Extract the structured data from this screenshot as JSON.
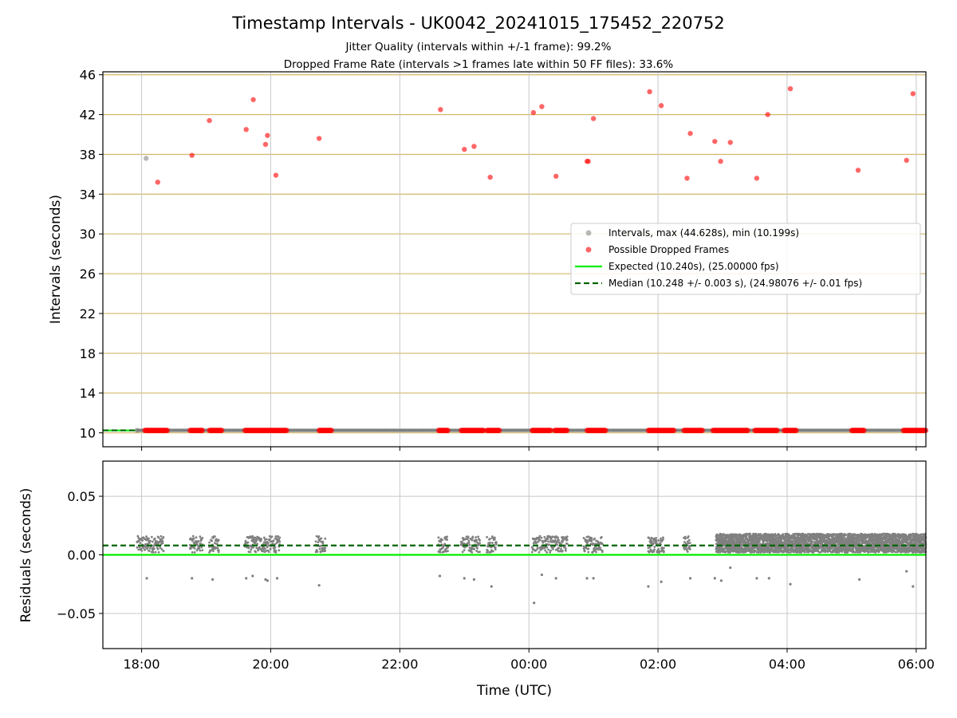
{
  "chart_data": [
    {
      "type": "scatter",
      "title": "Timestamp Intervals - UK0042_20241015_175452_220752",
      "subtitles": [
        "Jitter Quality (intervals within +/-1 frame): 99.2%",
        "Dropped Frame Rate (intervals >1 frames late within 50 FF files): 33.6%"
      ],
      "ylabel": "Intervals (seconds)",
      "xlim_hours": [
        17.4,
        30.15
      ],
      "ylim": [
        8.6,
        46.3
      ],
      "yticks": [
        10,
        14,
        18,
        22,
        26,
        30,
        34,
        38,
        42,
        46
      ],
      "ytick_labels": [
        "10",
        "14",
        "18",
        "22",
        "26",
        "30",
        "34",
        "38",
        "42",
        "46"
      ],
      "xticks_hours": [
        18,
        20,
        22,
        24,
        26,
        28,
        30
      ],
      "grid": true,
      "legend_position": "center-right",
      "colors": {
        "intervals": "#808080",
        "dropped": "#ff0000",
        "expected": "#00ee00",
        "median": "#006400",
        "h_grid": "#d4b86a",
        "v_grid": "#c8c8c8"
      },
      "series": [
        {
          "name": "Intervals, max (44.628s), min (10.199s)",
          "points": [
            [
              17.93,
              10.25
            ],
            [
              18.07,
              37.6
            ]
          ]
        },
        {
          "name": "Possible Dropped Frames",
          "points": [
            [
              18.25,
              35.2
            ],
            [
              18.78,
              37.9
            ],
            [
              19.05,
              41.4
            ],
            [
              19.62,
              40.5
            ],
            [
              19.73,
              43.5
            ],
            [
              19.92,
              39.0
            ],
            [
              19.95,
              39.9
            ],
            [
              20.08,
              35.9
            ],
            [
              20.75,
              39.6
            ],
            [
              22.63,
              42.5
            ],
            [
              23.0,
              38.5
            ],
            [
              23.15,
              38.8
            ],
            [
              23.4,
              35.7
            ],
            [
              24.07,
              42.2
            ],
            [
              24.2,
              42.8
            ],
            [
              24.42,
              35.8
            ],
            [
              24.9,
              37.3
            ],
            [
              24.92,
              37.3
            ],
            [
              25.0,
              41.6
            ],
            [
              25.87,
              44.3
            ],
            [
              26.05,
              42.9
            ],
            [
              26.45,
              35.6
            ],
            [
              26.5,
              40.1
            ],
            [
              26.88,
              39.3
            ],
            [
              26.97,
              37.3
            ],
            [
              27.12,
              39.2
            ],
            [
              27.53,
              35.6
            ],
            [
              27.7,
              42.0
            ],
            [
              28.05,
              44.6
            ],
            [
              29.1,
              36.4
            ],
            [
              29.85,
              37.4
            ],
            [
              29.95,
              44.1
            ]
          ],
          "clusters_near_10": [
            [
              18.05,
              18.4
            ],
            [
              18.75,
              18.95
            ],
            [
              19.05,
              19.25
            ],
            [
              19.6,
              20.25
            ],
            [
              20.75,
              20.95
            ],
            [
              22.6,
              22.75
            ],
            [
              22.95,
              23.3
            ],
            [
              23.35,
              23.55
            ],
            [
              24.05,
              24.35
            ],
            [
              24.4,
              24.6
            ],
            [
              24.9,
              25.2
            ],
            [
              25.85,
              26.25
            ],
            [
              26.4,
              26.7
            ],
            [
              26.85,
              27.4
            ],
            [
              27.5,
              27.85
            ],
            [
              27.95,
              28.15
            ],
            [
              29.0,
              29.2
            ],
            [
              29.8,
              30.15
            ]
          ]
        }
      ],
      "lines": [
        {
          "name": "Expected (10.240s), (25.00000 fps)",
          "y": 10.24,
          "style": "solid"
        },
        {
          "name": "Median (10.248 +/- 0.003 s), (24.98076 +/- 0.01 fps)",
          "y": 10.248,
          "style": "dashed"
        }
      ]
    },
    {
      "type": "scatter",
      "xlabel": "Time (UTC)",
      "ylabel": "Residuals (seconds)",
      "xlim_hours": [
        17.4,
        30.15
      ],
      "ylim": [
        -0.08,
        0.08
      ],
      "yticks": [
        -0.05,
        0.0,
        0.05
      ],
      "ytick_labels": [
        "−0.05",
        "0.00",
        "0.05"
      ],
      "xticks_hours": [
        18,
        20,
        22,
        24,
        26,
        28,
        30
      ],
      "xtick_labels": [
        "18:00",
        "20:00",
        "22:00",
        "00:00",
        "02:00",
        "04:00",
        "06:00"
      ],
      "grid": true,
      "expected_residual": 0.0,
      "median_residual": 0.008,
      "sparse_clusters": [
        [
          17.93,
          18.35
        ],
        [
          18.75,
          18.95
        ],
        [
          19.05,
          19.2
        ],
        [
          19.6,
          20.15
        ],
        [
          20.7,
          20.85
        ],
        [
          22.6,
          22.75
        ],
        [
          22.95,
          23.25
        ],
        [
          23.35,
          23.5
        ],
        [
          24.05,
          24.45
        ],
        [
          24.45,
          24.6
        ],
        [
          24.85,
          25.15
        ],
        [
          25.85,
          26.1
        ],
        [
          26.4,
          26.5
        ]
      ],
      "dense_range": [
        26.9,
        30.15
      ],
      "main_band": [
        0.002,
        0.018
      ],
      "outliers": [
        [
          18.08,
          -0.02
        ],
        [
          18.78,
          -0.02
        ],
        [
          19.1,
          -0.021
        ],
        [
          19.62,
          -0.02
        ],
        [
          19.72,
          -0.018
        ],
        [
          19.92,
          -0.021
        ],
        [
          19.95,
          -0.022
        ],
        [
          20.1,
          -0.02
        ],
        [
          20.75,
          -0.026
        ],
        [
          22.62,
          -0.018
        ],
        [
          23.0,
          -0.02
        ],
        [
          23.15,
          -0.021
        ],
        [
          23.42,
          -0.027
        ],
        [
          24.08,
          -0.041
        ],
        [
          24.2,
          -0.017
        ],
        [
          24.42,
          -0.02
        ],
        [
          24.9,
          -0.02
        ],
        [
          25.0,
          -0.02
        ],
        [
          25.85,
          -0.027
        ],
        [
          26.05,
          -0.023
        ],
        [
          26.5,
          -0.02
        ],
        [
          26.88,
          -0.02
        ],
        [
          26.98,
          -0.022
        ],
        [
          27.12,
          -0.011
        ],
        [
          27.53,
          -0.02
        ],
        [
          27.72,
          -0.02
        ],
        [
          28.05,
          -0.025
        ],
        [
          29.12,
          -0.021
        ],
        [
          29.85,
          -0.014
        ],
        [
          29.95,
          -0.027
        ]
      ]
    }
  ]
}
